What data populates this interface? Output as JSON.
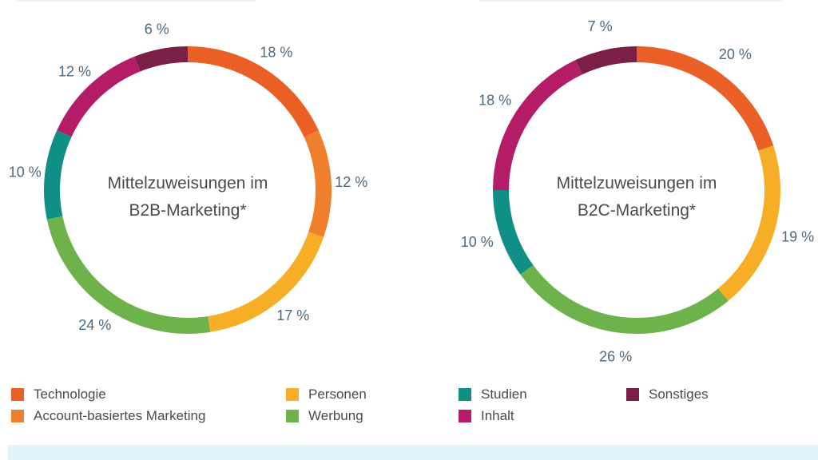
{
  "colors": {
    "Technologie": "#ea5f25",
    "Account-basiertes Marketing": "#f07f2d",
    "Personen": "#f6ae26",
    "Werbung": "#6eb24b",
    "Studien": "#0f8f86",
    "Inhalt": "#b51c68",
    "Sonstiges": "#7a1f45"
  },
  "legend": [
    {
      "label": "Technologie",
      "color": "#ea5f25"
    },
    {
      "label": "Account-basiertes Marketing",
      "color": "#f07f2d"
    },
    {
      "label": "Personen",
      "color": "#f6ae26"
    },
    {
      "label": "Werbung",
      "color": "#6eb24b"
    },
    {
      "label": "Studien",
      "color": "#0f8f86"
    },
    {
      "label": "Inhalt",
      "color": "#b51c68"
    },
    {
      "label": "Sonstiges",
      "color": "#7a1f45"
    }
  ],
  "chart_data": [
    {
      "type": "pie",
      "title": "Mittelzuweisungen im B2B-Marketing*",
      "title_lines": [
        "Mittelzuweisungen im",
        "B2B-Marketing*"
      ],
      "categories": [
        "Technologie",
        "Account-basiertes Marketing",
        "Personen",
        "Werbung",
        "Studien",
        "Inhalt",
        "Sonstiges"
      ],
      "values": [
        18,
        12,
        17,
        24,
        10,
        12,
        6
      ],
      "labels": [
        "18 %",
        "12 %",
        "17 %",
        "24 %",
        "10 %",
        "12 %",
        "6 %"
      ]
    },
    {
      "type": "pie",
      "title": "Mittelzuweisungen im B2C-Marketing*",
      "title_lines": [
        "Mittelzuweisungen im",
        "B2C-Marketing*"
      ],
      "categories": [
        "Technologie",
        "Personen",
        "Werbung",
        "Studien",
        "Inhalt",
        "Sonstiges"
      ],
      "values": [
        20,
        19,
        26,
        10,
        18,
        7
      ],
      "labels": [
        "20 %",
        "19 %",
        "26 %",
        "10 %",
        "18 %",
        "7 %"
      ]
    }
  ]
}
